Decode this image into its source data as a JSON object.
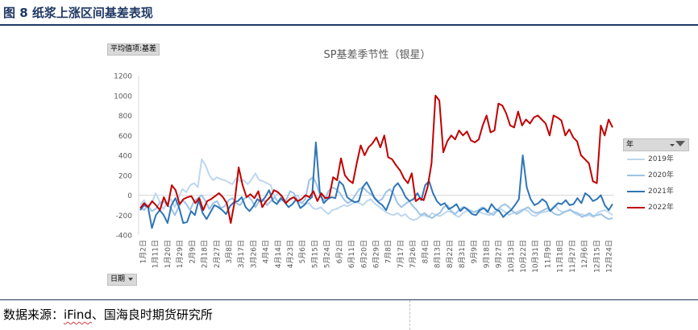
{
  "figure": {
    "title": "图 8   纸浆上涨区间基差表现",
    "source_prefix": "数据来源：",
    "source_wavy": "iFind",
    "source_suffix": "、国海良时期货研究所"
  },
  "pivot": {
    "field_button": "平均值项:基差",
    "axis_button": "日期",
    "legend_header": "年"
  },
  "chart_data": {
    "type": "line",
    "title": "SP基差季节性（银星）",
    "xlabel": "",
    "ylabel": "",
    "ylim": [
      -400,
      1200
    ],
    "yticks": [
      -400,
      -200,
      0,
      200,
      400,
      600,
      800,
      1000,
      1200
    ],
    "grid": false,
    "legend_position": "right",
    "x_ticks": [
      "1月2日",
      "1月11日",
      "1月20日",
      "1月29日",
      "2月9日",
      "2月18日",
      "2月27日",
      "3月8日",
      "3月17日",
      "3月26日",
      "4月4日",
      "4月14日",
      "4月23日",
      "5月6日",
      "5月15日",
      "5月24日",
      "6月2日",
      "6月11日",
      "6月20日",
      "6月29日",
      "7月8日",
      "7月17日",
      "7月26日",
      "8月4日",
      "8月13日",
      "8月22日",
      "8月31日",
      "9月9日",
      "9月18日",
      "9月27日",
      "10月13日",
      "10月22日",
      "10月31日",
      "11月9日",
      "11月18日",
      "11月27日",
      "12月6日",
      "12月15日",
      "12月24日"
    ],
    "series": [
      {
        "name": "2019年",
        "color": "#bdd7ee",
        "width": 2,
        "values": [
          -100,
          -50,
          -120,
          -80,
          20,
          -60,
          -140,
          -80,
          -40,
          -120,
          -20,
          60,
          30,
          100,
          120,
          80,
          360,
          300,
          200,
          150,
          180,
          160,
          150,
          130,
          110,
          170,
          140,
          150,
          110,
          160,
          220,
          150,
          140,
          120,
          100,
          -20,
          30,
          -40,
          -60,
          -50,
          -20,
          0,
          -80,
          -90,
          -80,
          -130,
          -140,
          -120,
          -160,
          -190,
          -150,
          -140,
          -120,
          -100,
          -110,
          -90,
          -70,
          -80,
          -100,
          -60,
          -40,
          -80,
          -110,
          -140,
          -170,
          -190,
          -200,
          -180,
          -210,
          -190,
          -230,
          -250,
          -240,
          -210,
          -200,
          -220,
          -180,
          -200,
          -210,
          -190,
          -160,
          -170,
          -200,
          -220,
          -180,
          -160,
          -150,
          -170,
          -160,
          -180,
          -190,
          -200,
          -170,
          -160,
          -140,
          -170,
          -200,
          -180,
          -170,
          -150,
          -140,
          -160,
          -200,
          -210,
          -180,
          -170,
          -160,
          -140,
          -100,
          -150,
          -170,
          -160,
          -140,
          -180,
          -200,
          -190,
          -210,
          -200,
          -220,
          -180,
          -160,
          -150,
          -170,
          -200
        ]
      },
      {
        "name": "2020年",
        "color": "#9dc3e6",
        "width": 2,
        "values": [
          -120,
          -150,
          -100,
          -160,
          -140,
          -80,
          -60,
          -100,
          -130,
          -200,
          -120,
          -50,
          -90,
          -150,
          -60,
          -30,
          0,
          -60,
          -140,
          -80,
          -60,
          -130,
          -110,
          -50,
          -30,
          -80,
          -100,
          -40,
          -10,
          -50,
          -120,
          -60,
          -40,
          -100,
          -60,
          -20,
          -70,
          -40,
          -50,
          40,
          20,
          -60,
          -80,
          -40,
          150,
          180,
          100,
          -20,
          -50,
          40,
          80,
          60,
          20,
          -40,
          -80,
          -60,
          0,
          60,
          80,
          40,
          10,
          -20,
          -60,
          -40,
          30,
          60,
          10,
          -80,
          -120,
          -90,
          -60,
          -110,
          -150,
          -200,
          -180,
          -210,
          -230,
          -200,
          -180,
          -120,
          -100,
          -160,
          -190,
          -150,
          -120,
          -130,
          -160,
          -170,
          -150,
          -120,
          -140,
          -180,
          -200,
          -150,
          -110,
          -90,
          -120,
          -160,
          -190,
          -170,
          -140,
          -120,
          -160,
          -180,
          -170,
          -150,
          -130,
          -160,
          -190,
          -200,
          -180,
          -160,
          -150,
          -170,
          -180,
          -220,
          -200,
          -180,
          -210,
          -200,
          -190,
          -220,
          -240,
          -230
        ]
      },
      {
        "name": "2021年",
        "color": "#2e75b6",
        "width": 2,
        "values": [
          -150,
          -100,
          -120,
          -330,
          -200,
          -150,
          -200,
          -280,
          -100,
          -30,
          -130,
          -280,
          -270,
          -160,
          -200,
          -50,
          -180,
          -240,
          -170,
          -100,
          -120,
          -150,
          -190,
          -110,
          -70,
          -60,
          -20,
          -120,
          -160,
          -110,
          -40,
          -70,
          -20,
          50,
          -60,
          -90,
          -30,
          -70,
          -120,
          -90,
          -40,
          -130,
          -100,
          -50,
          -20,
          530,
          30,
          -80,
          -40,
          -20,
          -30,
          140,
          100,
          -20,
          -50,
          -70,
          -60,
          80,
          130,
          60,
          -30,
          -70,
          -100,
          -150,
          -50,
          80,
          120,
          60,
          -20,
          -60,
          -40,
          20,
          -50,
          100,
          140,
          20,
          -60,
          -100,
          -80,
          -140,
          -120,
          -90,
          -160,
          -120,
          -150,
          -190,
          -200,
          -150,
          -130,
          -170,
          -90,
          -140,
          -160,
          -220,
          -180,
          -150,
          -100,
          -40,
          400,
          80,
          -40,
          -100,
          -80,
          -40,
          -70,
          -160,
          -120,
          -80,
          -90,
          -50,
          -100,
          -90,
          -30,
          -80,
          20,
          -10,
          -60,
          -40,
          0,
          -100,
          -150,
          -90
        ]
      },
      {
        "name": "2022年",
        "color": "#c00000",
        "width": 2,
        "values": [
          -130,
          -80,
          -120,
          -60,
          -100,
          -150,
          -20,
          -110,
          100,
          50,
          -90,
          -40,
          -20,
          -10,
          -80,
          -30,
          -150,
          -60,
          -40,
          -10,
          20,
          -20,
          -80,
          -280,
          -60,
          280,
          100,
          -20,
          10,
          -30,
          40,
          -120,
          -60,
          -20,
          50,
          30,
          -10,
          -80,
          -40,
          -20,
          -60,
          -40,
          0,
          -20,
          40,
          -60,
          20,
          -30,
          -20,
          180,
          150,
          370,
          200,
          150,
          120,
          320,
          500,
          400,
          480,
          520,
          580,
          480,
          600,
          380,
          360,
          300,
          250,
          170,
          120,
          220,
          -60,
          -30,
          -50,
          80,
          320,
          1000,
          950,
          430,
          540,
          600,
          560,
          650,
          600,
          640,
          550,
          530,
          560,
          700,
          800,
          630,
          650,
          920,
          900,
          820,
          700,
          680,
          840,
          700,
          760,
          720,
          780,
          800,
          760,
          720,
          600,
          800,
          780,
          750,
          600,
          660,
          580,
          540,
          400,
          360,
          320,
          140,
          120,
          700,
          600,
          760,
          680
        ]
      }
    ]
  }
}
